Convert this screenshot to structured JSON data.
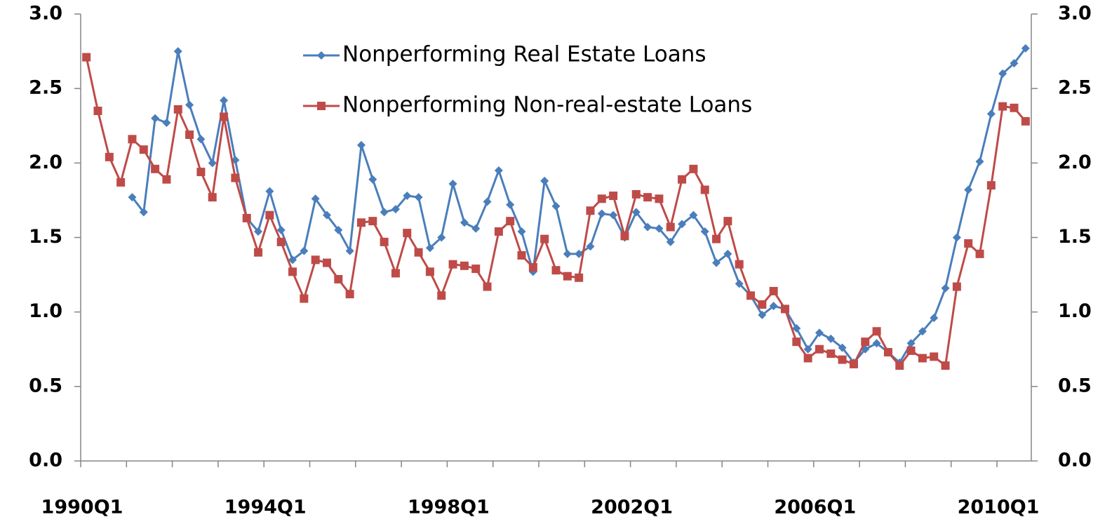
{
  "chart_data": {
    "type": "line",
    "categories": [
      "1990Q1",
      null,
      null,
      null,
      null,
      null,
      null,
      null,
      null,
      null,
      null,
      null,
      null,
      null,
      null,
      null,
      "1994Q1",
      null,
      null,
      null,
      null,
      null,
      null,
      null,
      null,
      null,
      null,
      null,
      null,
      null,
      null,
      null,
      "1998Q1",
      null,
      null,
      null,
      null,
      null,
      null,
      null,
      null,
      null,
      null,
      null,
      null,
      null,
      null,
      null,
      "2002Q1",
      null,
      null,
      null,
      null,
      null,
      null,
      null,
      null,
      null,
      null,
      null,
      null,
      null,
      null,
      null,
      "2006Q1",
      null,
      null,
      null,
      null,
      null,
      null,
      null,
      null,
      null,
      null,
      null,
      null,
      null,
      null,
      null,
      "2010Q1",
      null,
      null
    ],
    "series": [
      {
        "name": "Nonperforming Real Estate Loans",
        "color": "#4a7ebb",
        "marker": "diamond",
        "values": [
          null,
          null,
          null,
          null,
          1.77,
          1.67,
          2.3,
          2.27,
          2.75,
          2.39,
          2.16,
          2.0,
          2.42,
          2.02,
          1.63,
          1.54,
          1.81,
          1.55,
          1.35,
          1.41,
          1.76,
          1.65,
          1.55,
          1.41,
          2.12,
          1.89,
          1.67,
          1.69,
          1.78,
          1.77,
          1.43,
          1.5,
          1.86,
          1.6,
          1.56,
          1.74,
          1.95,
          1.72,
          1.54,
          1.27,
          1.88,
          1.71,
          1.39,
          1.39,
          1.44,
          1.66,
          1.65,
          1.5,
          1.67,
          1.57,
          1.56,
          1.47,
          1.59,
          1.65,
          1.54,
          1.33,
          1.39,
          1.19,
          1.11,
          0.98,
          1.04,
          1.02,
          0.89,
          0.75,
          0.86,
          0.82,
          0.76,
          0.66,
          0.75,
          0.79,
          0.73,
          0.66,
          0.79,
          0.87,
          0.96,
          1.16,
          1.5,
          1.82,
          2.01,
          2.33,
          2.6,
          2.67,
          2.77
        ]
      },
      {
        "name": "Nonperforming Non-real-estate Loans",
        "color": "#be4b48",
        "marker": "square",
        "values": [
          2.71,
          2.35,
          2.04,
          1.87,
          2.16,
          2.09,
          1.96,
          1.89,
          2.36,
          2.19,
          1.94,
          1.77,
          2.31,
          1.9,
          1.63,
          1.4,
          1.65,
          1.47,
          1.27,
          1.09,
          1.35,
          1.33,
          1.22,
          1.12,
          1.6,
          1.61,
          1.47,
          1.26,
          1.53,
          1.4,
          1.27,
          1.11,
          1.32,
          1.31,
          1.29,
          1.17,
          1.54,
          1.61,
          1.38,
          1.3,
          1.49,
          1.28,
          1.24,
          1.23,
          1.68,
          1.76,
          1.78,
          1.51,
          1.79,
          1.77,
          1.76,
          1.57,
          1.89,
          1.96,
          1.82,
          1.49,
          1.61,
          1.32,
          1.11,
          1.05,
          1.14,
          1.02,
          0.8,
          0.69,
          0.75,
          0.72,
          0.68,
          0.65,
          0.8,
          0.87,
          0.73,
          0.64,
          0.74,
          0.69,
          0.7,
          0.64,
          1.17,
          1.46,
          1.39,
          1.85,
          2.38,
          2.37,
          2.28
        ]
      }
    ],
    "ylim": [
      0,
      3
    ],
    "yticks": [
      {
        "value": 0,
        "label": "0.0"
      },
      {
        "value": 0.5,
        "label": "0.5"
      },
      {
        "value": 1,
        "label": "1.0"
      },
      {
        "value": 1.5,
        "label": "1.5"
      },
      {
        "value": 2,
        "label": "2.0"
      },
      {
        "value": 2.5,
        "label": "2.5"
      },
      {
        "value": 3,
        "label": "3.0"
      }
    ],
    "y2lim": [
      0,
      3
    ],
    "y2ticks": [
      {
        "value": 0,
        "label": "0.0"
      },
      {
        "value": 0.5,
        "label": "0.5"
      },
      {
        "value": 1,
        "label": "1.0"
      },
      {
        "value": 1.5,
        "label": "1.5"
      },
      {
        "value": 2,
        "label": "2.0"
      },
      {
        "value": 2.5,
        "label": "2.5"
      },
      {
        "value": 3,
        "label": "3.0"
      }
    ],
    "grid": false,
    "legend": "top"
  }
}
